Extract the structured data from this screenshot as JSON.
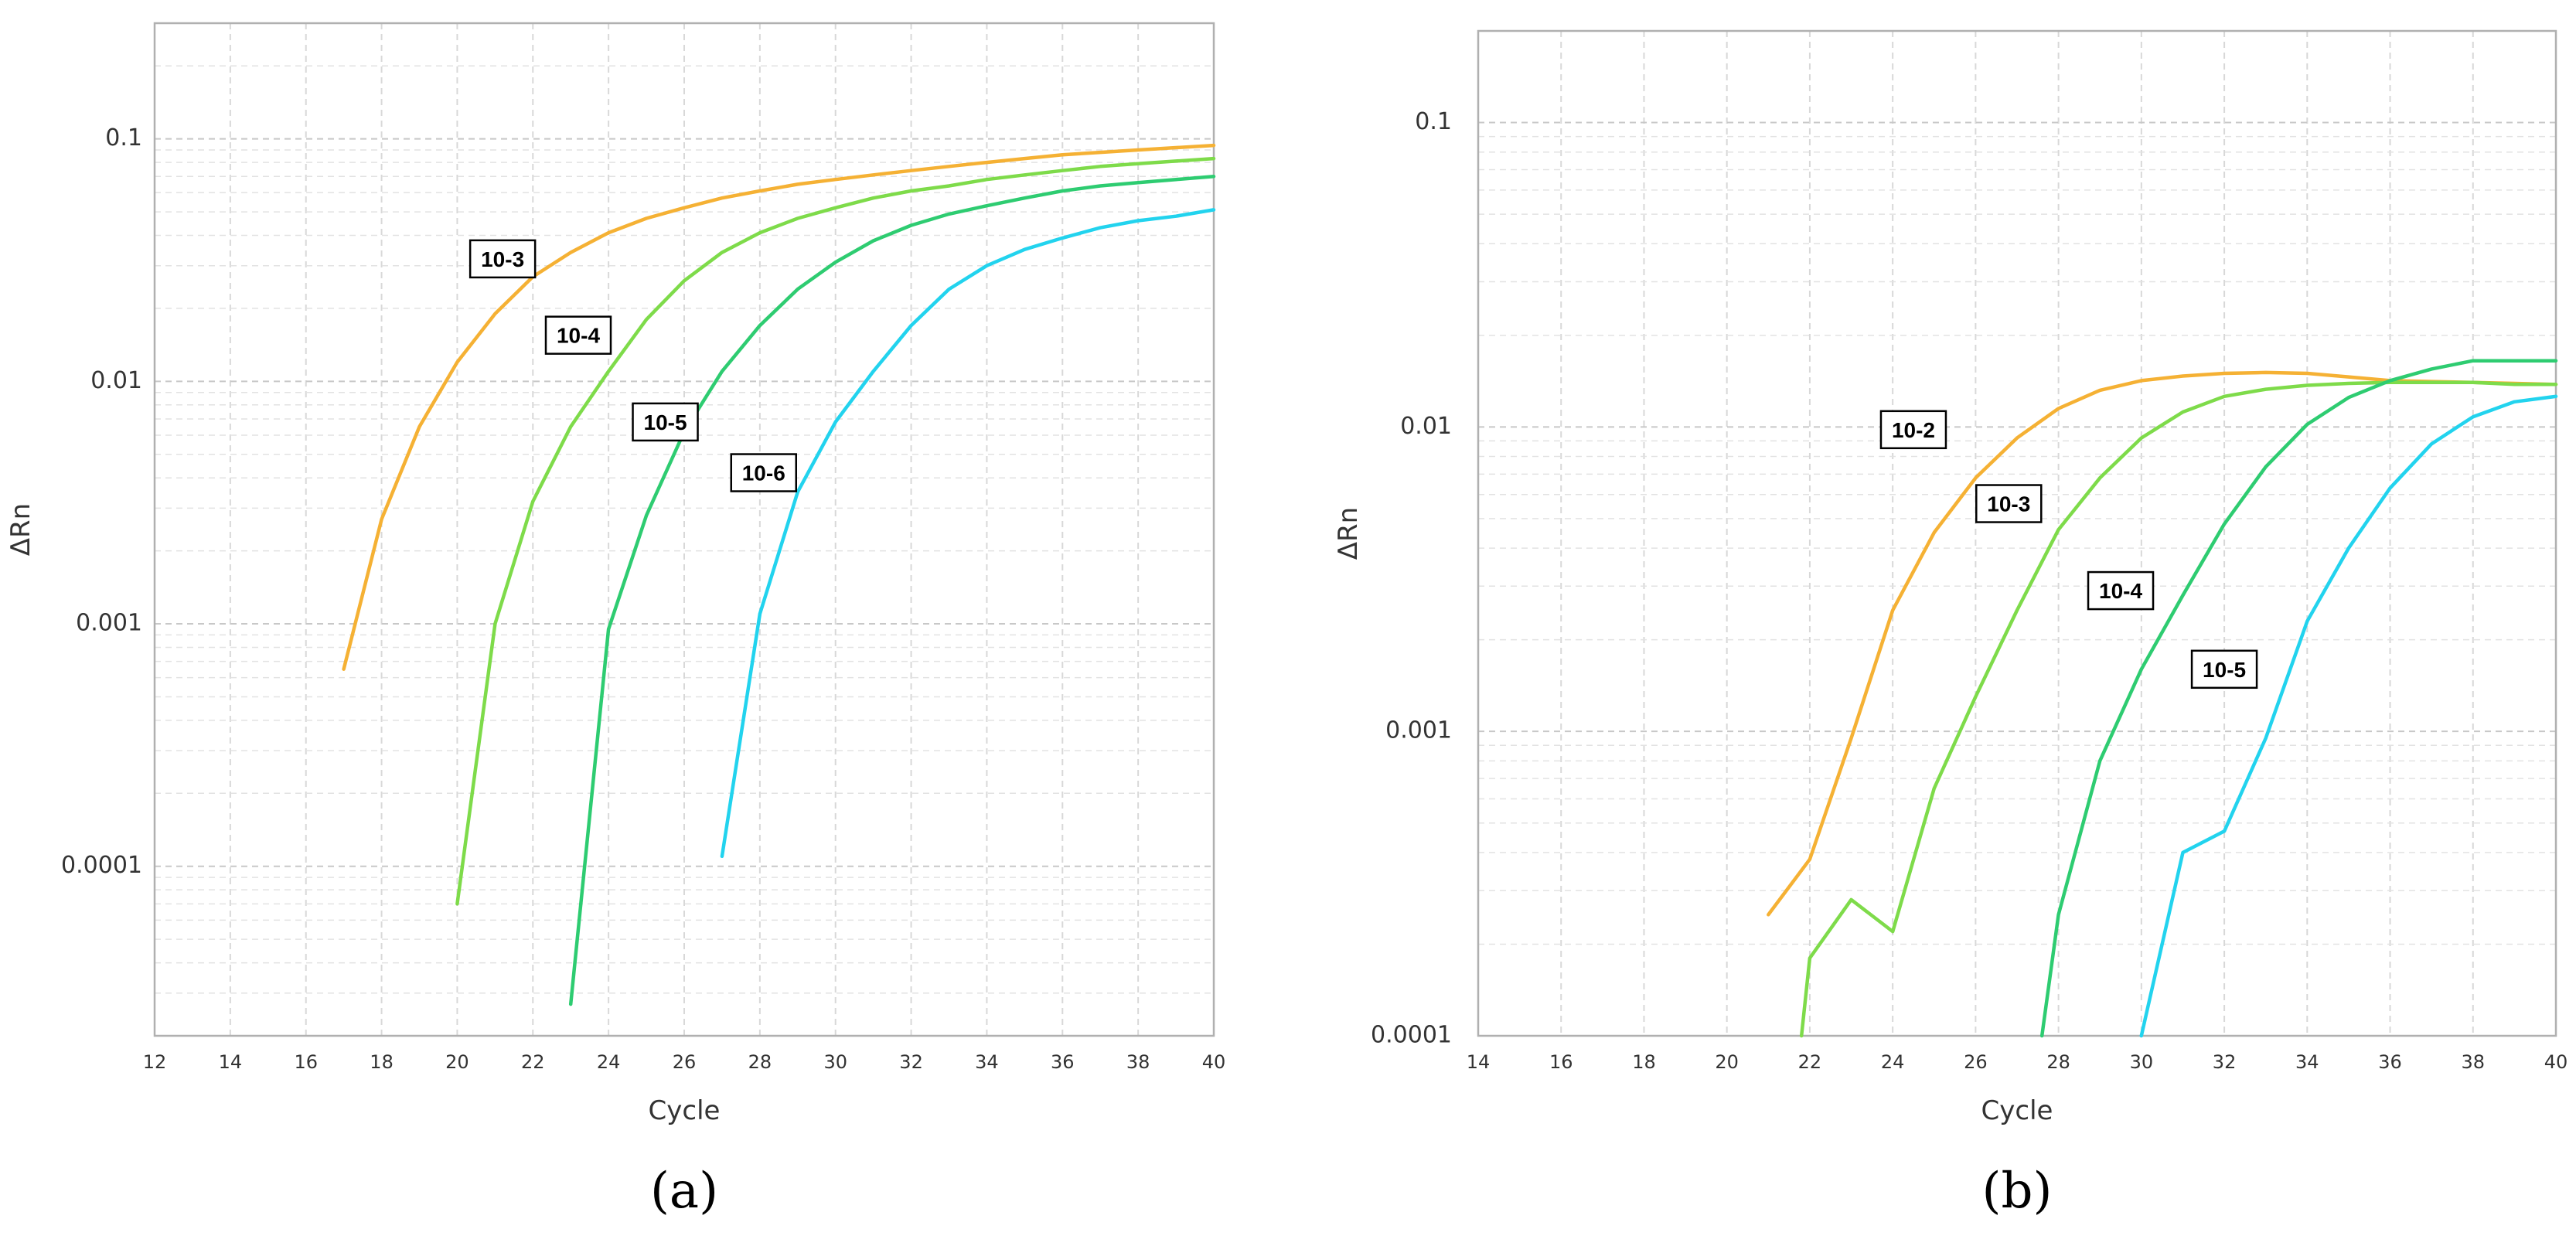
{
  "chart_data": [
    {
      "type": "line",
      "panel_label": "(a)",
      "xlabel": "Cycle",
      "ylabel": "ΔRn",
      "y_scale": "log",
      "xlim": [
        12,
        40
      ],
      "ylim": [
        2e-05,
        0.3
      ],
      "x_ticks": [
        12,
        14,
        16,
        18,
        20,
        22,
        24,
        26,
        28,
        30,
        32,
        34,
        36,
        38,
        40
      ],
      "y_ticks": [
        0.0001,
        0.001,
        0.01,
        0.1
      ],
      "y_tick_labels": [
        "0.0001",
        "0.001",
        "0.01",
        "0.1"
      ],
      "grid": true,
      "series": [
        {
          "name": "10-3",
          "color": "#F5B134",
          "label_at": [
            21.2,
            0.032
          ],
          "points": [
            [
              17,
              0.00065
            ],
            [
              18,
              0.0027
            ],
            [
              19,
              0.0065
            ],
            [
              20,
              0.012
            ],
            [
              21,
              0.019
            ],
            [
              22,
              0.027
            ],
            [
              23,
              0.034
            ],
            [
              24,
              0.041
            ],
            [
              25,
              0.047
            ],
            [
              26,
              0.052
            ],
            [
              27,
              0.057
            ],
            [
              28,
              0.061
            ],
            [
              29,
              0.065
            ],
            [
              30,
              0.068
            ],
            [
              31,
              0.071
            ],
            [
              32,
              0.074
            ],
            [
              33,
              0.077
            ],
            [
              34,
              0.08
            ],
            [
              35,
              0.083
            ],
            [
              36,
              0.086
            ],
            [
              37,
              0.088
            ],
            [
              38,
              0.09
            ],
            [
              39,
              0.092
            ],
            [
              40,
              0.094
            ]
          ]
        },
        {
          "name": "10-4",
          "color": "#7EDB4A",
          "label_at": [
            23.2,
            0.0155
          ],
          "points": [
            [
              20,
              7e-05
            ],
            [
              21,
              0.001
            ],
            [
              22,
              0.0032
            ],
            [
              23,
              0.0065
            ],
            [
              24,
              0.011
            ],
            [
              25,
              0.018
            ],
            [
              26,
              0.026
            ],
            [
              27,
              0.034
            ],
            [
              28,
              0.041
            ],
            [
              29,
              0.047
            ],
            [
              30,
              0.052
            ],
            [
              31,
              0.057
            ],
            [
              32,
              0.061
            ],
            [
              33,
              0.064
            ],
            [
              34,
              0.068
            ],
            [
              35,
              0.071
            ],
            [
              36,
              0.074
            ],
            [
              37,
              0.077
            ],
            [
              38,
              0.079
            ],
            [
              39,
              0.081
            ],
            [
              40,
              0.083
            ]
          ]
        },
        {
          "name": "10-5",
          "color": "#2ECC71",
          "label_at": [
            25.5,
            0.0068
          ],
          "points": [
            [
              23,
              2.7e-05
            ],
            [
              24,
              0.00095
            ],
            [
              25,
              0.0028
            ],
            [
              26,
              0.0062
            ],
            [
              27,
              0.011
            ],
            [
              28,
              0.017
            ],
            [
              29,
              0.024
            ],
            [
              30,
              0.031
            ],
            [
              31,
              0.038
            ],
            [
              32,
              0.044
            ],
            [
              33,
              0.049
            ],
            [
              34,
              0.053
            ],
            [
              35,
              0.057
            ],
            [
              36,
              0.061
            ],
            [
              37,
              0.064
            ],
            [
              38,
              0.066
            ],
            [
              39,
              0.068
            ],
            [
              40,
              0.07
            ]
          ]
        },
        {
          "name": "10-6",
          "color": "#22D3EE",
          "label_at": [
            28.1,
            0.0042
          ],
          "points": [
            [
              27,
              0.00011
            ],
            [
              28,
              0.0011
            ],
            [
              29,
              0.0035
            ],
            [
              30,
              0.0068
            ],
            [
              31,
              0.011
            ],
            [
              32,
              0.017
            ],
            [
              33,
              0.024
            ],
            [
              34,
              0.03
            ],
            [
              35,
              0.035
            ],
            [
              36,
              0.039
            ],
            [
              37,
              0.043
            ],
            [
              38,
              0.046
            ],
            [
              39,
              0.048
            ],
            [
              40,
              0.051
            ]
          ]
        }
      ]
    },
    {
      "type": "line",
      "panel_label": "(b)",
      "xlabel": "Cycle",
      "ylabel": "ΔRn",
      "y_scale": "log",
      "xlim": [
        14,
        40
      ],
      "ylim": [
        0.0001,
        0.2
      ],
      "x_ticks": [
        14,
        16,
        18,
        20,
        22,
        24,
        26,
        28,
        30,
        32,
        34,
        36,
        38,
        40
      ],
      "y_ticks": [
        0.0001,
        0.001,
        0.01,
        0.1
      ],
      "y_tick_labels": [
        "0.0001",
        "0.001",
        "0.01",
        "0.1"
      ],
      "grid": true,
      "series": [
        {
          "name": "10-2",
          "color": "#F5B134",
          "label_at": [
            24.5,
            0.0098
          ],
          "points": [
            [
              21,
              0.00025
            ],
            [
              22,
              0.00038
            ],
            [
              23,
              0.00095
            ],
            [
              24,
              0.0025
            ],
            [
              25,
              0.0045
            ],
            [
              26,
              0.0068
            ],
            [
              27,
              0.0092
            ],
            [
              28,
              0.0115
            ],
            [
              29,
              0.0132
            ],
            [
              30,
              0.0142
            ],
            [
              31,
              0.0147
            ],
            [
              32,
              0.015
            ],
            [
              33,
              0.0151
            ],
            [
              34,
              0.015
            ],
            [
              35,
              0.0146
            ],
            [
              36,
              0.0142
            ],
            [
              37,
              0.0141
            ],
            [
              38,
              0.014
            ],
            [
              39,
              0.0139
            ],
            [
              40,
              0.0138
            ]
          ]
        },
        {
          "name": "10-3",
          "color": "#7EDB4A",
          "label_at": [
            26.8,
            0.0056
          ],
          "points": [
            [
              21.8,
              0.0001
            ],
            [
              22,
              0.00018
            ],
            [
              23,
              0.00028
            ],
            [
              24,
              0.00022
            ],
            [
              25,
              0.00065
            ],
            [
              26,
              0.0013
            ],
            [
              27,
              0.0025
            ],
            [
              28,
              0.0046
            ],
            [
              29,
              0.0068
            ],
            [
              30,
              0.0092
            ],
            [
              31,
              0.0112
            ],
            [
              32,
              0.0126
            ],
            [
              33,
              0.0133
            ],
            [
              34,
              0.0137
            ],
            [
              35,
              0.0139
            ],
            [
              36,
              0.014
            ],
            [
              37,
              0.014
            ],
            [
              38,
              0.014
            ],
            [
              39,
              0.0138
            ],
            [
              40,
              0.0138
            ]
          ]
        },
        {
          "name": "10-4",
          "color": "#2ECC71",
          "label_at": [
            29.5,
            0.0029
          ],
          "points": [
            [
              27.6,
              0.0001
            ],
            [
              28,
              0.00025
            ],
            [
              29,
              0.0008
            ],
            [
              30,
              0.0016
            ],
            [
              31,
              0.0028
            ],
            [
              32,
              0.0048
            ],
            [
              33,
              0.0074
            ],
            [
              34,
              0.0102
            ],
            [
              35,
              0.0125
            ],
            [
              36,
              0.0142
            ],
            [
              37,
              0.0155
            ],
            [
              38,
              0.0165
            ],
            [
              39,
              0.0165
            ],
            [
              40,
              0.0165
            ]
          ]
        },
        {
          "name": "10-5",
          "color": "#22D3EE",
          "label_at": [
            32.0,
            0.0016
          ],
          "points": [
            [
              30,
              0.0001
            ],
            [
              31,
              0.0004
            ],
            [
              32,
              0.00047
            ],
            [
              33,
              0.00095
            ],
            [
              34,
              0.0023
            ],
            [
              35,
              0.004
            ],
            [
              36,
              0.0063
            ],
            [
              37,
              0.0088
            ],
            [
              38,
              0.0108
            ],
            [
              39,
              0.0121
            ],
            [
              40,
              0.0126
            ]
          ]
        }
      ]
    }
  ]
}
